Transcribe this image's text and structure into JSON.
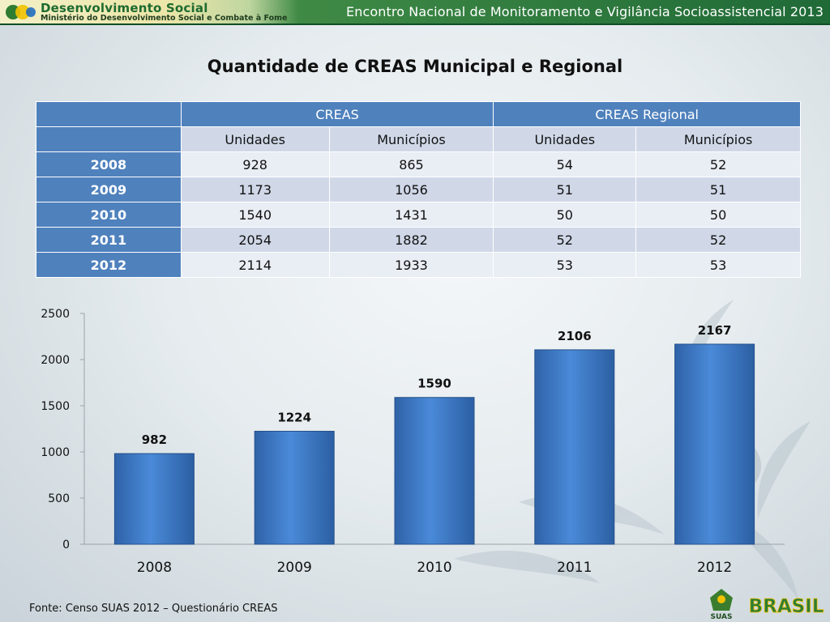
{
  "banner": {
    "brand_title": "Desenvolvimento Social",
    "brand_subtitle": "Ministério do Desenvolvimento Social e Combate à Fome",
    "event": "Encontro Nacional de Monitoramento e Vigilância Socioassistencial 2013"
  },
  "title": "Quantidade de CREAS Municipal e Regional",
  "table": {
    "group_headers": [
      "CREAS",
      "CREAS Regional"
    ],
    "sub_headers": [
      "Unidades",
      "Municípios",
      "Unidades",
      "Municípios"
    ],
    "rows": [
      {
        "year": "2008",
        "values": [
          "928",
          "865",
          "54",
          "52"
        ]
      },
      {
        "year": "2009",
        "values": [
          "1173",
          "1056",
          "51",
          "51"
        ]
      },
      {
        "year": "2010",
        "values": [
          "1540",
          "1431",
          "50",
          "50"
        ]
      },
      {
        "year": "2011",
        "values": [
          "2054",
          "1882",
          "52",
          "52"
        ]
      },
      {
        "year": "2012",
        "values": [
          "2114",
          "1933",
          "53",
          "53"
        ]
      }
    ]
  },
  "chart_data": {
    "type": "bar",
    "title": "",
    "xlabel": "",
    "ylabel": "",
    "categories": [
      "2008",
      "2009",
      "2010",
      "2011",
      "2012"
    ],
    "values": [
      982,
      1224,
      1590,
      2106,
      2167
    ],
    "ylim": [
      0,
      2500
    ],
    "yticks": [
      0,
      500,
      1000,
      1500,
      2000,
      2500
    ],
    "data_labels": true,
    "grid": false,
    "color": "#3a78c2"
  },
  "source": "Fonte: Censo SUAS 2012 – Questionário CREAS",
  "logos": {
    "suas": "SUAS",
    "brasil": "BRASIL"
  }
}
